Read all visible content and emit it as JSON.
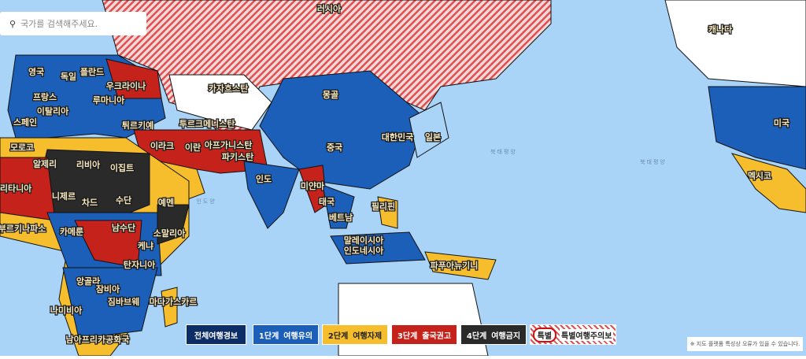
{
  "search": {
    "placeholder": "국가를 검색해주세요."
  },
  "map": {
    "labels": [
      "러시아",
      "캐나다",
      "미국",
      "멕시코",
      "영국",
      "폴란드",
      "독일",
      "우크라이나",
      "프랑스",
      "루마니아",
      "카자흐스탄",
      "몽골",
      "이탈리아",
      "스페인",
      "튀르키예",
      "투르크메니스탄",
      "중국",
      "대한민국",
      "일본",
      "모로코",
      "이라크",
      "이란",
      "아프가니스탄",
      "알제리",
      "리비아",
      "이집트",
      "파키스탄",
      "인도",
      "미얀마",
      "모리타니아",
      "니제르",
      "수단",
      "예멘",
      "차드",
      "태국",
      "베트남",
      "필리핀",
      "부르키나파소",
      "카메룬",
      "남수단",
      "소말리아",
      "말레이시아",
      "인도네시아",
      "케냐",
      "탄자니아",
      "파푸아뉴기니",
      "앙골라",
      "잠비아",
      "짐바브웨",
      "마다가스카르",
      "나미비아",
      "남아프리카공화국"
    ],
    "ocean_labels": [
      "북태평양",
      "북태평양",
      "인도양"
    ]
  },
  "legend": {
    "all": "전체여행경보",
    "items": [
      {
        "step": "1단계",
        "label": "여행유의"
      },
      {
        "step": "2단계",
        "label": "여행자제"
      },
      {
        "step": "3단계",
        "label": "출국권고"
      },
      {
        "step": "4단계",
        "label": "여행금지"
      }
    ],
    "special": {
      "badge": "특별",
      "label": "특별여행주의보"
    }
  },
  "disclaimer": "※ 지도 플랫폼 특성상 오류가 있을 수 있습니다."
}
